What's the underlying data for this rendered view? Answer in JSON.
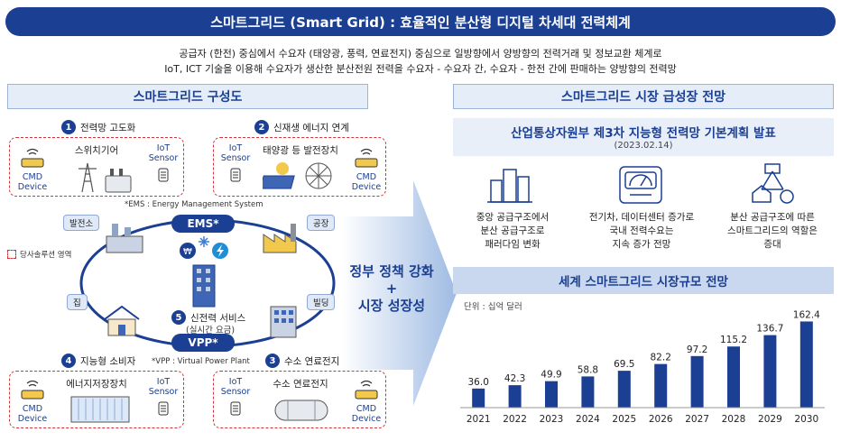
{
  "header": {
    "title": "스마트그리드 (Smart Grid) : 효율적인 분산형 디지털 차세대 전력체계",
    "intro_line1": "공급자 (한전) 중심에서 수요자 (태양광, 풍력, 연료전지) 중심으로 일방향에서 양방향의 전력거래 및 정보교환 체계로",
    "intro_line2": "IoT, ICT 기술을 이용해 수요자가 생산한 분산전원 전력을 수요자 - 수요자 간, 수요자 - 한전 간에 판매하는 양방향의 전력망"
  },
  "left": {
    "heading": "스마트그리드 구성도",
    "step1": {
      "num": "1",
      "label": "전력망 고도화",
      "device": "스위치기어"
    },
    "step2": {
      "num": "2",
      "label": "신재생 에너지 연계",
      "device": "태양광 등 발전장치"
    },
    "step3": {
      "num": "3",
      "label": "수소 연료전지",
      "device": "수소 연료전지"
    },
    "step4": {
      "num": "4",
      "label": "지능형 소비자",
      "device": "에너지저장장치"
    },
    "step5": {
      "num": "5",
      "label": "신전력 서비스",
      "sub": "(실시간 요금)"
    },
    "cmd_device": "CMD\nDevice",
    "iot_sensor": "IoT\nSensor",
    "ems_note": "*EMS : Energy Management System",
    "vpp_note": "*VPP : Virtual Power Plant",
    "ems_label": "EMS*",
    "vpp_label": "VPP*",
    "legend": "당사솔루션 영역",
    "nodes": {
      "plant": "발전소",
      "factory": "공장",
      "home": "집",
      "building": "빌딩"
    }
  },
  "middle": {
    "line1": "정부 정책 강화",
    "plus": "+",
    "line2": "시장 성장성"
  },
  "right": {
    "heading": "스마트그리드 시장 급성장 전망",
    "plan_title": "산업통상자원부 제3차 지능형 전력망 기본계획 발표",
    "plan_date": "(2023.02.14)",
    "items": [
      {
        "icon": "city-icon",
        "text": "중앙 공급구조에서\n분산 공급구조로\n패러다임 변화"
      },
      {
        "icon": "meter-icon",
        "text": "전기차, 데이터센터 증가로\n국내 전력수요는\n지속 증가 전망"
      },
      {
        "icon": "distributed-grid-icon",
        "text": "분산 공급구조에 따른\n스마트그리드의 역할은\n증대"
      }
    ],
    "market_title": "세계 스마트그리드 시장규모 전망"
  },
  "chart_data": {
    "type": "bar",
    "title": "세계 스마트그리드 시장규모 전망",
    "unit": "단위 : 십억 달러",
    "categories": [
      "2021",
      "2022",
      "2023",
      "2024",
      "2025",
      "2026",
      "2027",
      "2028",
      "2029",
      "2030"
    ],
    "values": [
      36.0,
      42.3,
      49.9,
      58.8,
      69.5,
      82.2,
      97.2,
      115.2,
      136.7,
      162.4
    ],
    "value_labels": [
      "36.0",
      "42.3",
      "49.9",
      "58.8",
      "69.5",
      "82.2",
      "97.2",
      "115.2",
      "136.7",
      "162.4"
    ],
    "ylim": [
      0,
      170
    ],
    "grid": false,
    "bar_color": "#1b3f93"
  }
}
